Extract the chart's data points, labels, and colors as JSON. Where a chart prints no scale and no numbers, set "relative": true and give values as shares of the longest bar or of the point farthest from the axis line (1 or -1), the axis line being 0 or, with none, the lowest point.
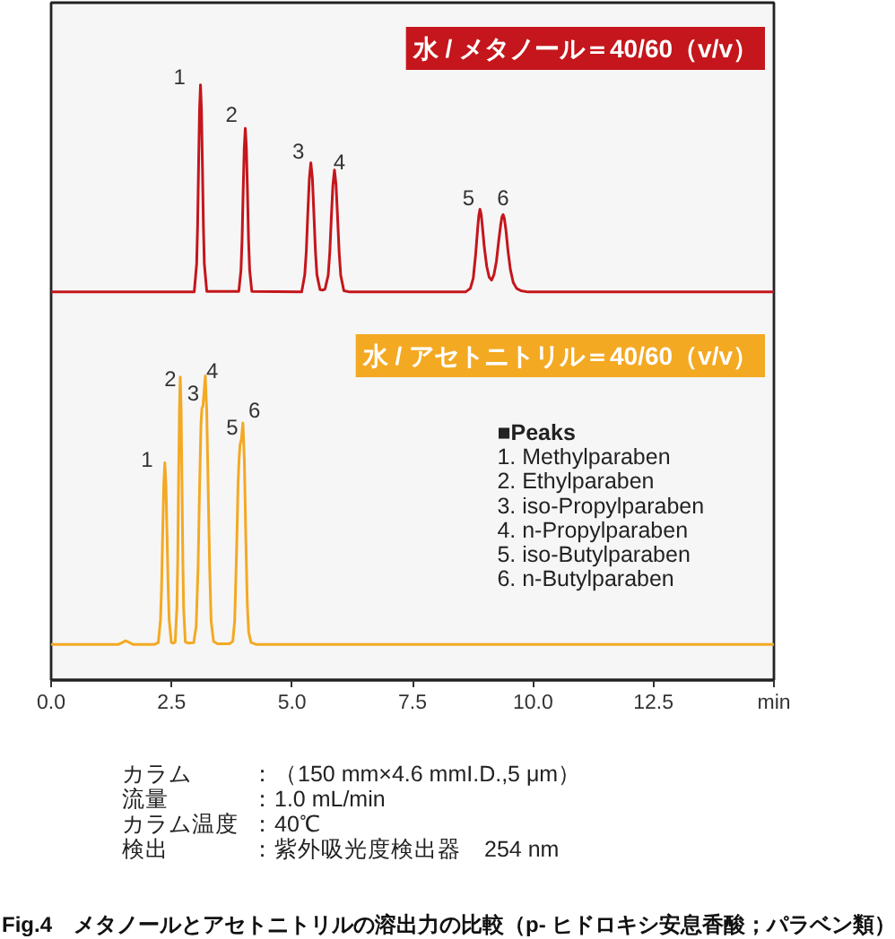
{
  "chart_data": {
    "type": "line",
    "relative": true,
    "title": "Fig.4　メタノールとアセトニトリルの溶出力の比較（p- ヒドロキシ安息香酸；パラベン類）",
    "xlim": [
      0,
      15
    ],
    "xticks": [
      {
        "value": 0,
        "label": "0.0"
      },
      2.5,
      {
        "value": 5,
        "label": "5.0"
      },
      7.5,
      {
        "value": 10,
        "label": "10.0"
      },
      12.5,
      {
        "value": 15,
        "label": "min"
      }
    ],
    "series": [
      {
        "name": "水 / メタノール＝40/60（v/v）",
        "color": "#c4161c",
        "x": [
          0,
          2.97,
          3.02,
          3.04,
          3.06,
          3.08,
          3.1,
          3.12,
          3.14,
          3.16,
          3.18,
          3.23,
          3.895,
          3.94,
          3.963,
          3.985,
          4.008,
          4.03,
          4.052,
          4.075,
          4.097,
          4.12,
          4.165,
          5.2,
          5.264,
          5.296,
          5.327,
          5.359,
          5.39,
          5.422,
          5.453,
          5.485,
          5.516,
          5.58,
          5.635,
          5.685,
          5.75,
          5.783,
          5.815,
          5.848,
          5.88,
          5.913,
          5.945,
          5.978,
          6.01,
          6.075,
          6.2,
          8.6,
          8.7,
          8.76,
          8.81,
          8.85,
          8.875,
          8.9,
          8.925,
          8.95,
          8.99,
          9.04,
          9.09,
          9.14,
          9.19,
          9.24,
          9.29,
          9.33,
          9.355,
          9.38,
          9.405,
          9.44,
          9.48,
          9.53,
          9.59,
          9.66,
          9.75,
          9.9,
          15
        ],
        "values": [
          0.652,
          0.652,
          0.699,
          0.764,
          0.864,
          0.958,
          1.0,
          0.958,
          0.864,
          0.764,
          0.699,
          0.653,
          0.653,
          0.689,
          0.74,
          0.82,
          0.894,
          0.927,
          0.894,
          0.82,
          0.74,
          0.689,
          0.653,
          0.652,
          0.681,
          0.721,
          0.784,
          0.843,
          0.869,
          0.843,
          0.784,
          0.721,
          0.681,
          0.656,
          0.655,
          0.657,
          0.68,
          0.718,
          0.777,
          0.832,
          0.857,
          0.832,
          0.777,
          0.718,
          0.68,
          0.654,
          0.652,
          0.652,
          0.658,
          0.675,
          0.715,
          0.757,
          0.78,
          0.791,
          0.782,
          0.762,
          0.727,
          0.695,
          0.677,
          0.672,
          0.681,
          0.703,
          0.739,
          0.765,
          0.778,
          0.782,
          0.776,
          0.755,
          0.722,
          0.69,
          0.668,
          0.658,
          0.654,
          0.652,
          0.652
        ]
      },
      {
        "name": "水 / アセトニトリル＝40/60（v/v）",
        "color": "#f4a922",
        "x": [
          0,
          1.4,
          1.48,
          1.54,
          1.6,
          1.7,
          2.15,
          2.225,
          2.27,
          2.293,
          2.315,
          2.338,
          2.36,
          2.383,
          2.405,
          2.428,
          2.45,
          2.495,
          2.54,
          2.575,
          2.61,
          2.628,
          2.645,
          2.663,
          2.68,
          2.698,
          2.715,
          2.733,
          2.75,
          2.785,
          2.85,
          2.96,
          3.01,
          3.05,
          3.08,
          3.11,
          3.13,
          3.15,
          3.17,
          3.2,
          3.23,
          3.26,
          3.29,
          3.32,
          3.37,
          3.45,
          3.7,
          3.77,
          3.81,
          3.85,
          3.88,
          3.9,
          3.92,
          3.95,
          3.98,
          4.01,
          4.04,
          4.07,
          4.1,
          4.15,
          4.25,
          15
        ],
        "values": [
          0.06,
          0.06,
          0.063,
          0.066,
          0.064,
          0.06,
          0.06,
          0.063,
          0.101,
          0.158,
          0.246,
          0.328,
          0.365,
          0.328,
          0.246,
          0.158,
          0.101,
          0.063,
          0.062,
          0.064,
          0.121,
          0.204,
          0.334,
          0.455,
          0.509,
          0.455,
          0.334,
          0.204,
          0.121,
          0.064,
          0.062,
          0.063,
          0.09,
          0.19,
          0.32,
          0.43,
          0.457,
          0.46,
          0.48,
          0.511,
          0.45,
          0.32,
          0.19,
          0.1,
          0.065,
          0.061,
          0.061,
          0.065,
          0.1,
          0.22,
          0.33,
          0.37,
          0.395,
          0.405,
          0.432,
          0.37,
          0.24,
          0.13,
          0.08,
          0.063,
          0.06,
          0.06
        ]
      }
    ],
    "annotations": [
      {
        "text": "1",
        "x": 3.1,
        "y": 1.0
      },
      {
        "text": "2",
        "x": 4.03,
        "y": 0.927
      },
      {
        "text": "3",
        "x": 5.39,
        "y": 0.869
      },
      {
        "text": "4",
        "x": 5.88,
        "y": 0.857
      },
      {
        "text": "5",
        "x": 8.9,
        "y": 0.791
      },
      {
        "text": "6",
        "x": 9.38,
        "y": 0.782
      },
      {
        "text": "1",
        "x": 2.36,
        "y": 0.365
      },
      {
        "text": "2",
        "x": 2.68,
        "y": 0.509
      },
      {
        "text": "3",
        "x": 3.13,
        "y": 0.457
      },
      {
        "text": "4",
        "x": 3.2,
        "y": 0.511
      },
      {
        "text": "5",
        "x": 3.92,
        "y": 0.395
      },
      {
        "text": "6",
        "x": 3.98,
        "y": 0.432
      },
      "■Peaks",
      "1. Methylparaben",
      "2. Ethylparaben",
      "3. iso-Propylparaben",
      "4. n-Propylparaben",
      "5. iso-Butylparaben",
      "6. n-Butylparaben",
      "カラム",
      "：（150 mm×4.6 mmI.D.,5 μm）",
      "流量",
      "：1.0 mL/min",
      "カラム温度",
      "：40℃",
      "検出",
      "：紫外吸光度検出器　254 nm"
    ]
  }
}
